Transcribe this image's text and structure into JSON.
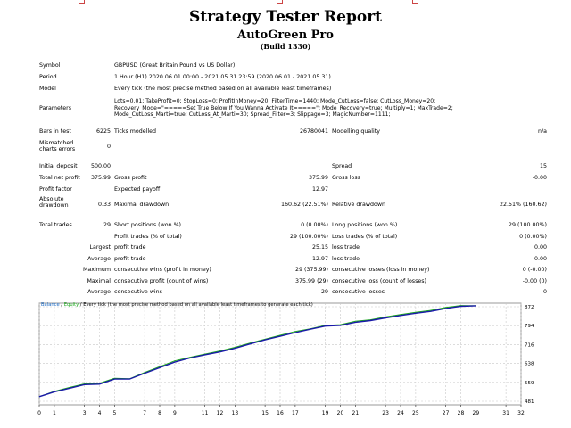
{
  "report": {
    "title": "Strategy Tester Report",
    "expert": "AutoGreen Pro",
    "build": "(Build 1330)"
  },
  "info": [
    {
      "label": "Symbol",
      "value": "GBPUSD (Great Britain Pound vs US Dollar)"
    },
    {
      "label": "Period",
      "value": "1 Hour (H1) 2020.06.01 00:00 - 2021.05.31 23:59 (2020.06.01 - 2021.05.31)"
    },
    {
      "label": "Model",
      "value": "Every tick (the most precise method based on all available least timeframes)"
    }
  ],
  "parameters": {
    "label": "Parameters",
    "lines": [
      "Lots=0.01; TakeProfit=0; StopLoss=0; ProfitInMoney=20; FilterTime=1440; Mode_CutLoss=false; CutLoss_Money=20;",
      "Recovery_Mode=\"=====Set True Below If You Wanna Activate It=====\"; Mode_Recovery=true; Multiply=1; MaxTrade=2;",
      "Mode_CutLoss_Marti=true; CutLoss_At_Marti=30; Spread_Filter=3; Slippage=3; MagicNumber=1111;"
    ]
  },
  "bars": {
    "bars_label": "Bars in test",
    "bars_value": "6225",
    "ticks_label": "Ticks modelled",
    "ticks_value": "26780041",
    "quality_label": "Modelling quality",
    "quality_value": "n/a",
    "mismatch_label": "Mismatched charts errors",
    "mismatch_value": "0"
  },
  "summary": {
    "initial_deposit_label": "Initial deposit",
    "initial_deposit": "500.00",
    "spread_label": "Spread",
    "spread": "15",
    "net_profit_label": "Total net profit",
    "net_profit": "375.99",
    "gross_profit_label": "Gross profit",
    "gross_profit": "375.99",
    "gross_loss_label": "Gross loss",
    "gross_loss": "-0.00",
    "profit_factor_label": "Profit factor",
    "expected_payoff_label": "Expected payoff",
    "expected_payoff": "12.97",
    "abs_drawdown_label": "Absolute drawdown",
    "abs_drawdown": "0.33",
    "max_drawdown_label": "Maximal drawdown",
    "max_drawdown": "160.62 (22.51%)",
    "rel_drawdown_label": "Relative drawdown",
    "rel_drawdown": "22.51% (160.62)"
  },
  "trades": {
    "total_label": "Total trades",
    "total": "29",
    "short_label": "Short positions (won %)",
    "short": "0 (0.00%)",
    "long_label": "Long positions (won %)",
    "long": "29 (100.00%)",
    "profit_trades_label": "Profit trades (% of total)",
    "profit_trades": "29 (100.00%)",
    "loss_trades_label": "Loss trades (% of total)",
    "loss_trades": "0 (0.00%)",
    "largest_label": "Largest",
    "largest_profit_label": "profit trade",
    "largest_profit": "25.15",
    "largest_loss_label": "loss trade",
    "largest_loss": "0.00",
    "average_label": "Average",
    "avg_profit_label": "profit trade",
    "avg_profit": "12.97",
    "avg_loss_label": "loss trade",
    "avg_loss": "0.00",
    "max_label": "Maximum",
    "max_wins_label": "consecutive wins (profit in money)",
    "max_wins": "29 (375.99)",
    "max_losses_label": "consecutive losses (loss in money)",
    "max_losses": "0 (-0.00)",
    "maximal_label": "Maximal",
    "maximal_profit_label": "consecutive profit (count of wins)",
    "maximal_profit": "375.99 (29)",
    "maximal_loss_label": "consecutive loss (count of losses)",
    "maximal_loss": "-0.00 (0)",
    "avg2_label": "Average",
    "avg_wins_label": "consecutive wins",
    "avg_wins": "29",
    "avg_losses_label": "consecutive losses",
    "avg_losses": "0"
  },
  "chart_legend": {
    "balance": "Balance",
    "sep1": " / ",
    "equity": "Equity",
    "rest": " / Every tick (the most precise method based on all available least timeframes to generate each tick)"
  },
  "colors": {
    "balance": "#1a1aa8",
    "equity": "#1aa81a",
    "grid": "#c8c8c8"
  },
  "chart_data": {
    "type": "line",
    "title": "",
    "xlabel": "",
    "ylabel": "",
    "xlim": [
      0,
      32
    ],
    "ylim": [
      481,
      872
    ],
    "xticks": [
      0,
      1,
      3,
      4,
      5,
      7,
      8,
      9,
      11,
      12,
      13,
      15,
      16,
      17,
      19,
      20,
      21,
      23,
      24,
      25,
      27,
      28,
      29,
      31,
      32
    ],
    "yticks": [
      481,
      559,
      638,
      716,
      794,
      872
    ],
    "grid": true,
    "legend": "top-left",
    "series": [
      {
        "name": "Balance",
        "x": [
          0,
          1,
          2,
          3,
          4,
          5,
          6,
          7,
          8,
          9,
          10,
          11,
          12,
          13,
          14,
          15,
          16,
          17,
          18,
          19,
          20,
          21,
          22,
          23,
          24,
          25,
          26,
          27,
          28,
          29
        ],
        "y": [
          500,
          520,
          535,
          550,
          552,
          573,
          573,
          597,
          620,
          643,
          660,
          673,
          685,
          700,
          718,
          735,
          750,
          765,
          779,
          792,
          795,
          808,
          815,
          826,
          836,
          845,
          853,
          865,
          874,
          876
        ]
      },
      {
        "name": "Equity",
        "x": [
          0,
          1,
          2,
          3,
          4,
          5,
          6,
          7,
          8,
          9,
          10,
          11,
          12,
          13,
          14,
          15,
          16,
          17,
          18,
          19,
          20,
          21,
          22,
          23,
          24,
          25,
          26,
          27,
          28,
          29
        ],
        "y": [
          500,
          522,
          538,
          553,
          555,
          576,
          574,
          600,
          624,
          648,
          663,
          676,
          689,
          704,
          722,
          738,
          754,
          770,
          781,
          795,
          798,
          812,
          818,
          830,
          840,
          849,
          857,
          869,
          877,
          876
        ]
      }
    ]
  }
}
